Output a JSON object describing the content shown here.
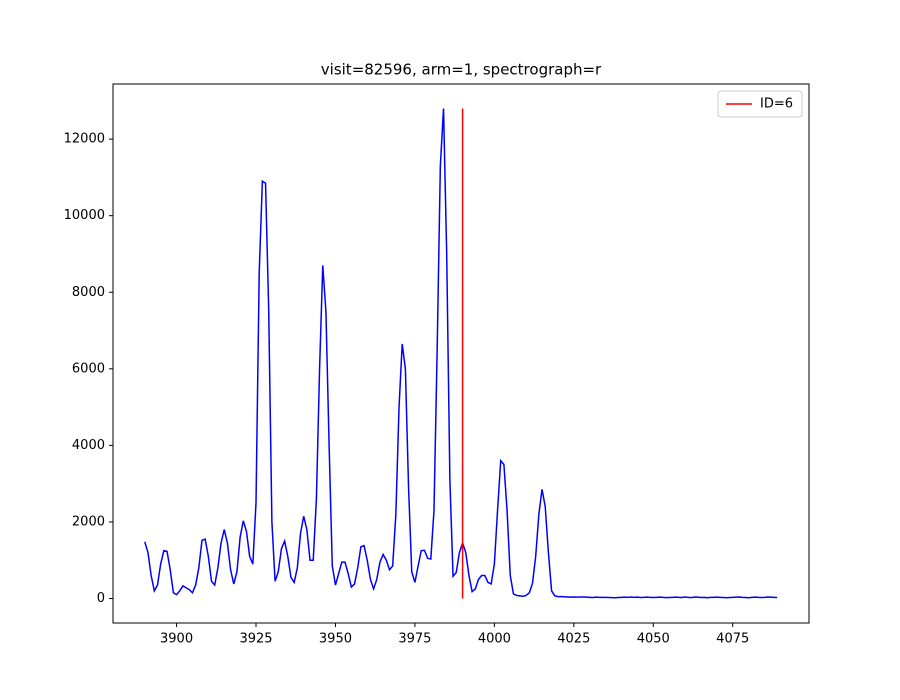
{
  "chart_data": {
    "type": "line",
    "title": "visit=82596, arm=1, spectrograph=r",
    "xlim": [
      3880,
      4099
    ],
    "ylim": [
      -640,
      13440
    ],
    "xticks": [
      3900,
      3925,
      3950,
      3975,
      4000,
      4025,
      4050,
      4075
    ],
    "yticks": [
      0,
      2000,
      4000,
      6000,
      8000,
      10000,
      12000
    ],
    "legend": "upper right",
    "series": [
      {
        "color": "#0000ff",
        "x": [
          3890,
          3891,
          3892,
          3893,
          3894,
          3895,
          3896,
          3897,
          3898,
          3899,
          3900,
          3901,
          3902,
          3903,
          3904,
          3905,
          3906,
          3907,
          3908,
          3909,
          3910,
          3911,
          3912,
          3913,
          3914,
          3915,
          3916,
          3917,
          3918,
          3919,
          3920,
          3921,
          3922,
          3923,
          3924,
          3925,
          3926,
          3927,
          3928,
          3929,
          3930,
          3931,
          3932,
          3933,
          3934,
          3935,
          3936,
          3937,
          3938,
          3939,
          3940,
          3941,
          3942,
          3943,
          3944,
          3945,
          3946,
          3947,
          3948,
          3949,
          3950,
          3951,
          3952,
          3953,
          3954,
          3955,
          3956,
          3957,
          3958,
          3959,
          3960,
          3961,
          3962,
          3963,
          3964,
          3965,
          3966,
          3967,
          3968,
          3969,
          3970,
          3971,
          3972,
          3973,
          3974,
          3975,
          3976,
          3977,
          3978,
          3979,
          3980,
          3981,
          3982,
          3983,
          3984,
          3985,
          3986,
          3987,
          3988,
          3989,
          3990,
          3991,
          3992,
          3993,
          3994,
          3995,
          3996,
          3997,
          3998,
          3999,
          4000,
          4001,
          4002,
          4003,
          4004,
          4005,
          4006,
          4007,
          4008,
          4009,
          4010,
          4011,
          4012,
          4013,
          4014,
          4015,
          4016,
          4017,
          4018,
          4019,
          4020,
          4021,
          4022,
          4023,
          4024,
          4025,
          4026,
          4027,
          4028,
          4029,
          4030,
          4031,
          4032,
          4033,
          4034,
          4035,
          4036,
          4037,
          4038,
          4039,
          4040,
          4041,
          4042,
          4043,
          4044,
          4045,
          4046,
          4047,
          4048,
          4049,
          4050,
          4051,
          4052,
          4053,
          4054,
          4055,
          4056,
          4057,
          4058,
          4059,
          4060,
          4061,
          4062,
          4063,
          4064,
          4065,
          4066,
          4067,
          4068,
          4069,
          4070,
          4071,
          4072,
          4073,
          4074,
          4075,
          4076,
          4077,
          4078,
          4079,
          4080,
          4081,
          4082,
          4083,
          4084,
          4085,
          4086,
          4087,
          4088,
          4089
        ],
        "values": [
          1480,
          1200,
          600,
          200,
          350,
          900,
          1250,
          1230,
          750,
          150,
          100,
          200,
          330,
          280,
          230,
          150,
          350,
          800,
          1520,
          1550,
          1100,
          450,
          350,
          800,
          1450,
          1800,
          1450,
          750,
          380,
          700,
          1600,
          2030,
          1750,
          1100,
          900,
          2500,
          8500,
          10900,
          10850,
          7500,
          2000,
          450,
          700,
          1300,
          1500,
          1100,
          550,
          420,
          800,
          1700,
          2150,
          1800,
          1000,
          1000,
          2600,
          6000,
          8700,
          7500,
          4000,
          850,
          350,
          650,
          950,
          950,
          650,
          300,
          380,
          800,
          1350,
          1380,
          1000,
          500,
          250,
          500,
          950,
          1150,
          1000,
          750,
          850,
          2200,
          5000,
          6650,
          6000,
          2900,
          700,
          420,
          850,
          1250,
          1260,
          1050,
          1030,
          2300,
          6500,
          11300,
          12800,
          9000,
          3100,
          580,
          680,
          1200,
          1450,
          1200,
          600,
          180,
          250,
          500,
          600,
          600,
          420,
          380,
          900,
          2300,
          3600,
          3500,
          2300,
          600,
          120,
          80,
          70,
          60,
          80,
          150,
          400,
          1100,
          2200,
          2850,
          2400,
          1200,
          200,
          70,
          50,
          50,
          45,
          40,
          35,
          40,
          35,
          38,
          40,
          35,
          30,
          25,
          35,
          30,
          28,
          30,
          25,
          22,
          20,
          25,
          30,
          35,
          30,
          40,
          30,
          35,
          25,
          30,
          35,
          30,
          25,
          30,
          35,
          28,
          22,
          25,
          30,
          35,
          30,
          25,
          38,
          30,
          22,
          40,
          35,
          25,
          30,
          20,
          28,
          30,
          35,
          30,
          25,
          20,
          25,
          30,
          35,
          40,
          30,
          25,
          20,
          28,
          35,
          30,
          25,
          30,
          40,
          35,
          30,
          25
        ]
      },
      {
        "name": "ID=6",
        "color": "#ff0000",
        "x": [
          3990,
          3990
        ],
        "values": [
          0,
          12800
        ]
      }
    ]
  }
}
